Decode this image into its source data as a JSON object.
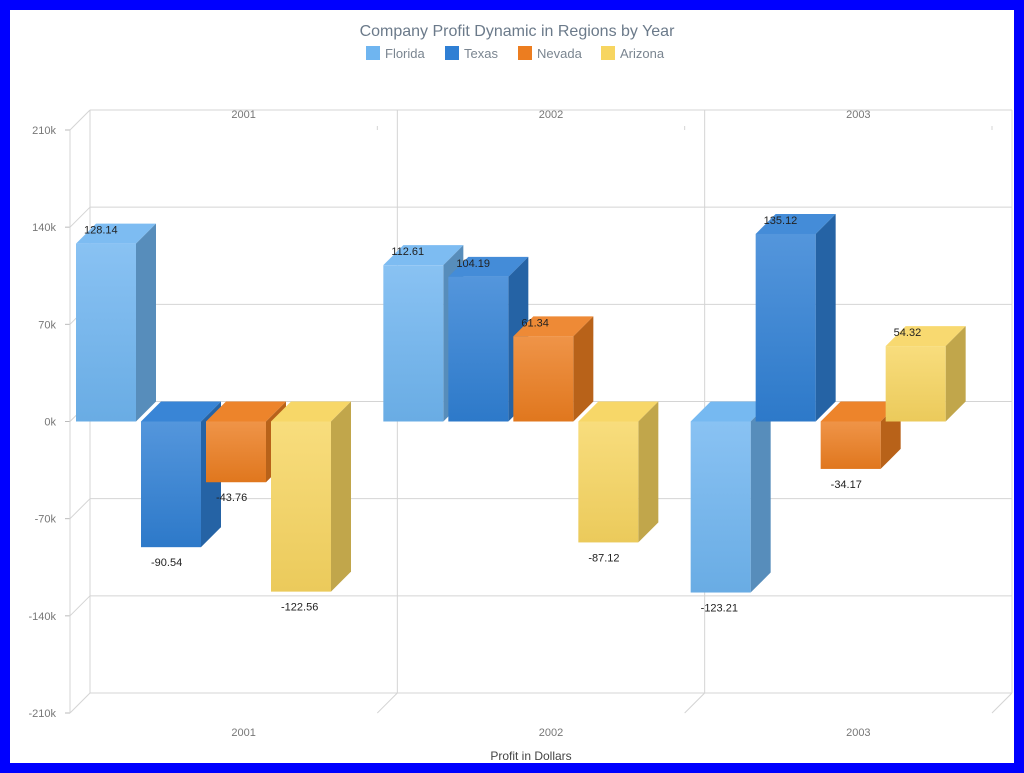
{
  "chart_data": {
    "type": "bar",
    "title": "Company Profit Dynamic in Regions by Year",
    "xlabel": "Profit in Dollars",
    "ylabel": "",
    "categories": [
      "2001",
      "2002",
      "2003"
    ],
    "ylim": [
      -210,
      210
    ],
    "yticks": [
      210,
      140,
      70,
      0,
      -70,
      -140,
      -210
    ],
    "ytick_labels": [
      "210k",
      "140k",
      "70k",
      "0k",
      "-70k",
      "-140k",
      "-210k"
    ],
    "grid": true,
    "legend_position": "top-center",
    "series": [
      {
        "name": "Florida",
        "values": [
          128.14,
          112.61,
          -123.21
        ],
        "labels": [
          "128.14",
          "112.61",
          "-123.21"
        ],
        "color": "#6fb5f0"
      },
      {
        "name": "Texas",
        "values": [
          -90.54,
          104.19,
          135.12
        ],
        "labels": [
          "-90.54",
          "104.19",
          "135.12"
        ],
        "color": "#2f7fd4"
      },
      {
        "name": "Nevada",
        "values": [
          -43.76,
          61.34,
          -34.17
        ],
        "labels": [
          "-43.76",
          "61.34",
          "-34.17"
        ],
        "color": "#ec7d20"
      },
      {
        "name": "Arizona",
        "values": [
          -122.56,
          -87.12,
          54.32
        ],
        "labels": [
          "-122.56",
          "-87.12",
          "54.32"
        ],
        "color": "#f7d560"
      }
    ]
  }
}
